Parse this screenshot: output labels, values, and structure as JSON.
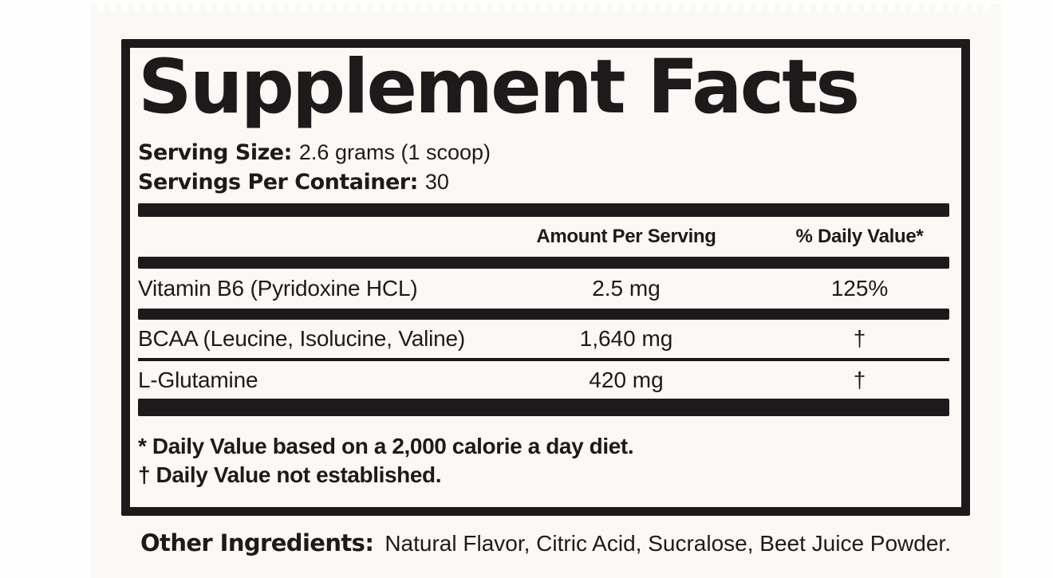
{
  "label": {
    "title": "Supplement Facts",
    "serving": {
      "size_label": "Serving Size:",
      "size_value": "2.6 grams (1 scoop)",
      "per_container_label": "Servings Per Container:",
      "per_container_value": "30"
    },
    "columns": {
      "amount": "Amount Per Serving",
      "daily_value": "% Daily Value*"
    },
    "rows": [
      {
        "name": "Vitamin B6 (Pyridoxine HCL)",
        "amount": "2.5 mg",
        "dv": "125%"
      },
      {
        "name": "BCAA (Leucine, Isolucine, Valine)",
        "amount": "1,640 mg",
        "dv": "†"
      },
      {
        "name": "L-Glutamine",
        "amount": "420 mg",
        "dv": "†"
      }
    ],
    "footnotes": [
      "* Daily Value based on a 2,000 calorie a day diet.",
      "† Daily Value not established."
    ],
    "other_ingredients": {
      "label": "Other Ingredients:",
      "value": "Natural Flavor, Citric Acid, Sucralose, Beet Juice Powder."
    }
  },
  "colors": {
    "ink": "#1e1a1b",
    "paper": "#fbf9f5",
    "page": "#fefefe"
  }
}
